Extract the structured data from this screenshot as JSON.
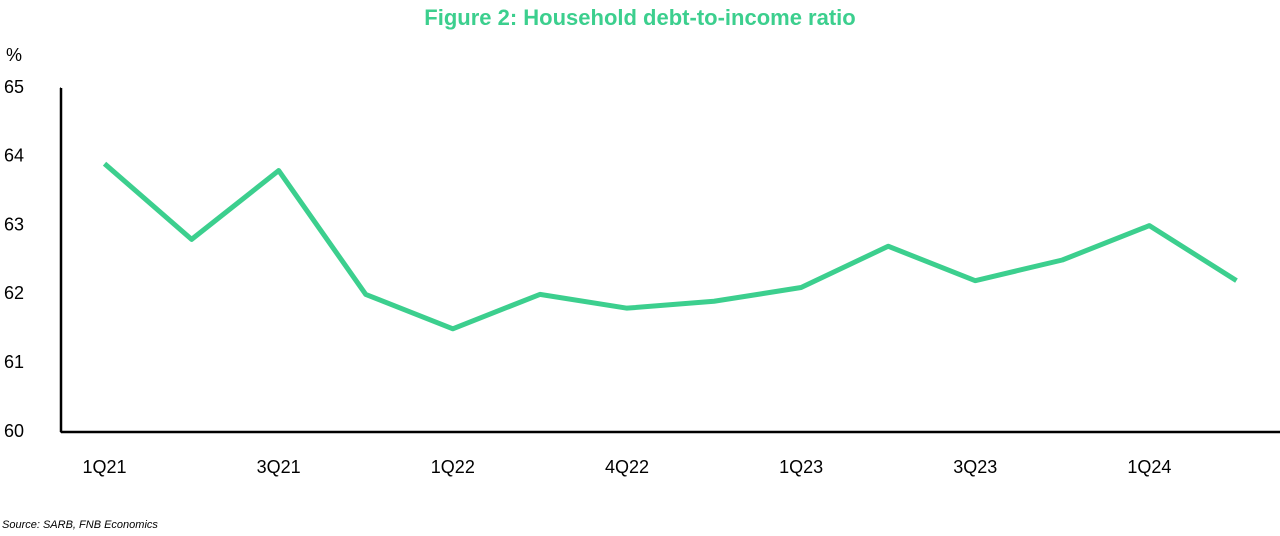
{
  "chart_data": {
    "type": "line",
    "title": "Figure 2: Household debt-to-income ratio",
    "y_label": "%",
    "source": "Source: SARB, FNB Economics",
    "categories": [
      "1Q21",
      null,
      "3Q21",
      null,
      "1Q22",
      null,
      "4Q22",
      null,
      "1Q23",
      null,
      "3Q23",
      null,
      "1Q24",
      null
    ],
    "values": [
      63.9,
      62.8,
      63.8,
      62.0,
      61.5,
      62.0,
      61.8,
      61.9,
      62.1,
      62.7,
      62.2,
      62.5,
      63.0,
      62.2
    ],
    "color": "#3ccf8e",
    "ylim": [
      60,
      65
    ],
    "yticks": [
      60,
      61,
      62,
      63,
      64,
      65
    ]
  }
}
